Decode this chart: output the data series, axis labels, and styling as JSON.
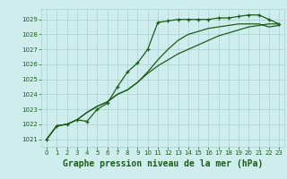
{
  "bg_color": "#d0eded",
  "grid_color": "#aacfcf",
  "line_color": "#1a5c1a",
  "marker_color": "#1a5c1a",
  "title": "Graphe pression niveau de la mer (hPa)",
  "title_fontsize": 7,
  "xlim": [
    -0.5,
    23.5
  ],
  "ylim": [
    1020.5,
    1029.7
  ],
  "yticks": [
    1021,
    1022,
    1023,
    1024,
    1025,
    1026,
    1027,
    1028,
    1029
  ],
  "xticks": [
    0,
    1,
    2,
    3,
    4,
    5,
    6,
    7,
    8,
    9,
    10,
    11,
    12,
    13,
    14,
    15,
    16,
    17,
    18,
    19,
    20,
    21,
    22,
    23
  ],
  "series": [
    {
      "x": [
        0,
        1,
        2,
        3,
        4,
        5,
        6,
        7,
        8,
        9,
        10,
        11,
        12,
        13,
        14,
        15,
        16,
        17,
        18,
        19,
        20,
        21,
        22,
        23
      ],
      "y": [
        1021.0,
        1021.9,
        1022.0,
        1022.3,
        1022.2,
        1023.0,
        1023.4,
        1024.5,
        1025.5,
        1026.1,
        1027.0,
        1028.8,
        1028.9,
        1029.0,
        1029.0,
        1029.0,
        1029.0,
        1029.1,
        1029.1,
        1029.2,
        1029.3,
        1029.3,
        1029.0,
        1028.7
      ],
      "marker": "+"
    },
    {
      "x": [
        0,
        1,
        2,
        3,
        4,
        5,
        6,
        7,
        8,
        9,
        10,
        11,
        12,
        13,
        14,
        15,
        16,
        17,
        18,
        19,
        20,
        21,
        22,
        23
      ],
      "y": [
        1021.0,
        1021.9,
        1022.0,
        1022.3,
        1022.8,
        1023.2,
        1023.5,
        1024.0,
        1024.3,
        1024.8,
        1025.5,
        1026.3,
        1027.0,
        1027.6,
        1028.0,
        1028.2,
        1028.4,
        1028.5,
        1028.6,
        1028.7,
        1028.7,
        1028.7,
        1028.5,
        1028.6
      ],
      "marker": null
    },
    {
      "x": [
        0,
        1,
        2,
        3,
        4,
        5,
        6,
        7,
        8,
        9,
        10,
        11,
        12,
        13,
        14,
        15,
        16,
        17,
        18,
        19,
        20,
        21,
        22,
        23
      ],
      "y": [
        1021.0,
        1021.9,
        1022.0,
        1022.3,
        1022.8,
        1023.2,
        1023.5,
        1024.0,
        1024.3,
        1024.8,
        1025.4,
        1025.9,
        1026.3,
        1026.7,
        1027.0,
        1027.3,
        1027.6,
        1027.9,
        1028.1,
        1028.3,
        1028.5,
        1028.6,
        1028.7,
        1028.7
      ],
      "marker": null
    }
  ]
}
